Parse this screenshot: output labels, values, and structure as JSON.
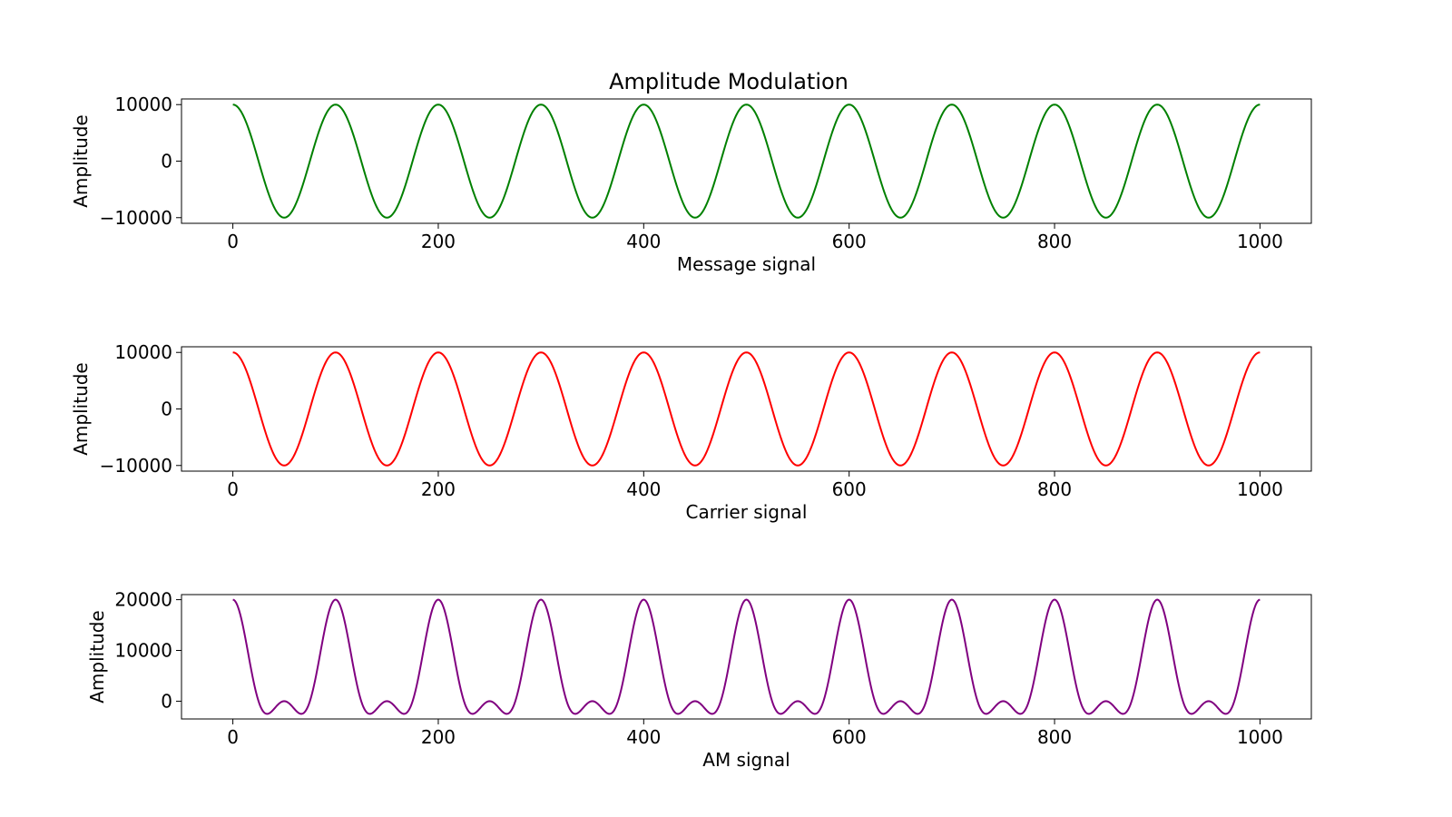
{
  "title": "Amplitude Modulation",
  "chart_data": [
    {
      "type": "line",
      "title": "Amplitude Modulation",
      "xlabel": "Message signal",
      "ylabel": "Amplitude",
      "xlim": [
        -50,
        1050
      ],
      "ylim": [
        -11000,
        11000
      ],
      "xticks": [
        0,
        200,
        400,
        600,
        800,
        1000
      ],
      "yticks": [
        -10000,
        0,
        10000
      ],
      "xtick_labels": [
        "0",
        "200",
        "400",
        "600",
        "800",
        "1000"
      ],
      "ytick_labels": [
        "−10000",
        "0",
        "10000"
      ],
      "grid": false,
      "color": "#008000",
      "series": [
        {
          "function": "10000*cos(2*pi*x/100)",
          "x_range": [
            0,
            1000
          ],
          "samples": 1001
        }
      ]
    },
    {
      "type": "line",
      "title": "",
      "xlabel": "Carrier signal",
      "ylabel": "Amplitude",
      "xlim": [
        -50,
        1050
      ],
      "ylim": [
        -11000,
        11000
      ],
      "xticks": [
        0,
        200,
        400,
        600,
        800,
        1000
      ],
      "yticks": [
        -10000,
        0,
        10000
      ],
      "xtick_labels": [
        "0",
        "200",
        "400",
        "600",
        "800",
        "1000"
      ],
      "ytick_labels": [
        "−10000",
        "0",
        "10000"
      ],
      "grid": false,
      "color": "#ff0000",
      "series": [
        {
          "function": "10000*cos(2*pi*x/100)",
          "x_range": [
            0,
            1000
          ],
          "samples": 1001
        }
      ]
    },
    {
      "type": "line",
      "title": "",
      "xlabel": "AM signal",
      "ylabel": "Amplitude",
      "xlim": [
        -50,
        1050
      ],
      "ylim": [
        -3500,
        21000
      ],
      "xticks": [
        0,
        200,
        400,
        600,
        800,
        1000
      ],
      "yticks": [
        0,
        10000,
        20000
      ],
      "xtick_labels": [
        "0",
        "200",
        "400",
        "600",
        "800",
        "1000"
      ],
      "ytick_labels": [
        "0",
        "10000",
        "20000"
      ],
      "grid": false,
      "color": "#800080",
      "series": [
        {
          "function": "(1+cos(2*pi*x/100))*10000*cos(2*pi*x/100)",
          "x_range": [
            0,
            1000
          ],
          "samples": 1001
        }
      ]
    }
  ]
}
